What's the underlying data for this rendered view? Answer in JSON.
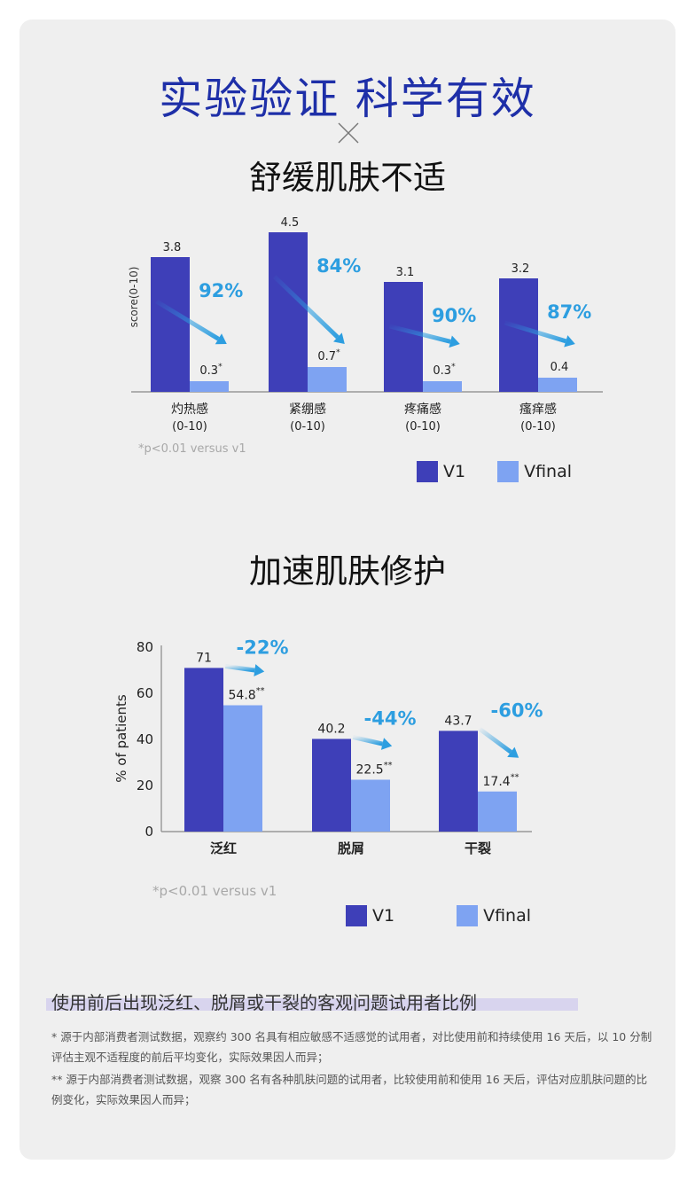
{
  "header": {
    "title": "实验验证 科学有效",
    "cross_icon": "close-cross-icon"
  },
  "colors": {
    "title_blue": "#1e2fa8",
    "v1": "#3e3fb8",
    "vfinal": "#7ea3f2",
    "arrow": "#2d9ee0"
  },
  "section1": {
    "title": "舒缓肌肤不适",
    "y_axis_label": "score(0-10)",
    "note": "*p<0.01 versus v1",
    "legend": [
      "V1",
      "Vfinal"
    ]
  },
  "section2": {
    "title": "加速肌肤修护",
    "y_axis_label": "% of patients",
    "note": "*p<0.01 versus v1",
    "legend": [
      "V1",
      "Vfinal"
    ]
  },
  "chart_data": [
    {
      "type": "bar",
      "title": "舒缓肌肤不适",
      "ylabel": "score(0-10)",
      "categories": [
        "灼热感\n(0-10)",
        "紧绷感\n(0-10)",
        "疼痛感\n(0-10)",
        "瘙痒感\n(0-10)"
      ],
      "series": [
        {
          "name": "V1",
          "values": [
            3.8,
            4.5,
            3.1,
            3.2
          ],
          "labels": [
            "3.8",
            "4.5",
            "3.1",
            "3.2"
          ]
        },
        {
          "name": "Vfinal",
          "values": [
            0.3,
            0.7,
            0.3,
            0.4
          ],
          "labels": [
            "0.3*",
            "0.7*",
            "0.3*",
            "0.4"
          ]
        }
      ],
      "annotations": [
        "92%",
        "84%",
        "90%",
        "87%"
      ],
      "ylim": [
        0,
        5
      ],
      "legend_position": "bottom-right"
    },
    {
      "type": "bar",
      "title": "加速肌肤修护",
      "ylabel": "% of patients",
      "categories": [
        "泛红",
        "脱屑",
        "干裂"
      ],
      "series": [
        {
          "name": "V1",
          "values": [
            71,
            40.2,
            43.7
          ],
          "labels": [
            "71",
            "40.2",
            "43.7"
          ]
        },
        {
          "name": "Vfinal",
          "values": [
            54.8,
            22.5,
            17.4
          ],
          "labels": [
            "54.8**",
            "22.5**",
            "17.4**"
          ]
        }
      ],
      "annotations": [
        "-22%",
        "-44%",
        "-60%"
      ],
      "yticks": [
        0,
        20,
        40,
        60,
        80
      ],
      "ylim": [
        0,
        80
      ],
      "legend_position": "bottom-right"
    }
  ],
  "summary": "使用前后出现泛红、脱屑或干裂的客观问题试用者比例",
  "footnotes": [
    "* 源于内部消费者测试数据，观察约 300 名具有相应敏感不适感觉的试用者，对比使用前和持续使用 16 天后，以 10 分制评估主观不适程度的前后平均变化，实际效果因人而异；",
    "** 源于内部消费者测试数据，观察 300 名有各种肌肤问题的试用者，比较使用前和使用 16 天后，评估对应肌肤问题的比例变化，实际效果因人而异；"
  ]
}
